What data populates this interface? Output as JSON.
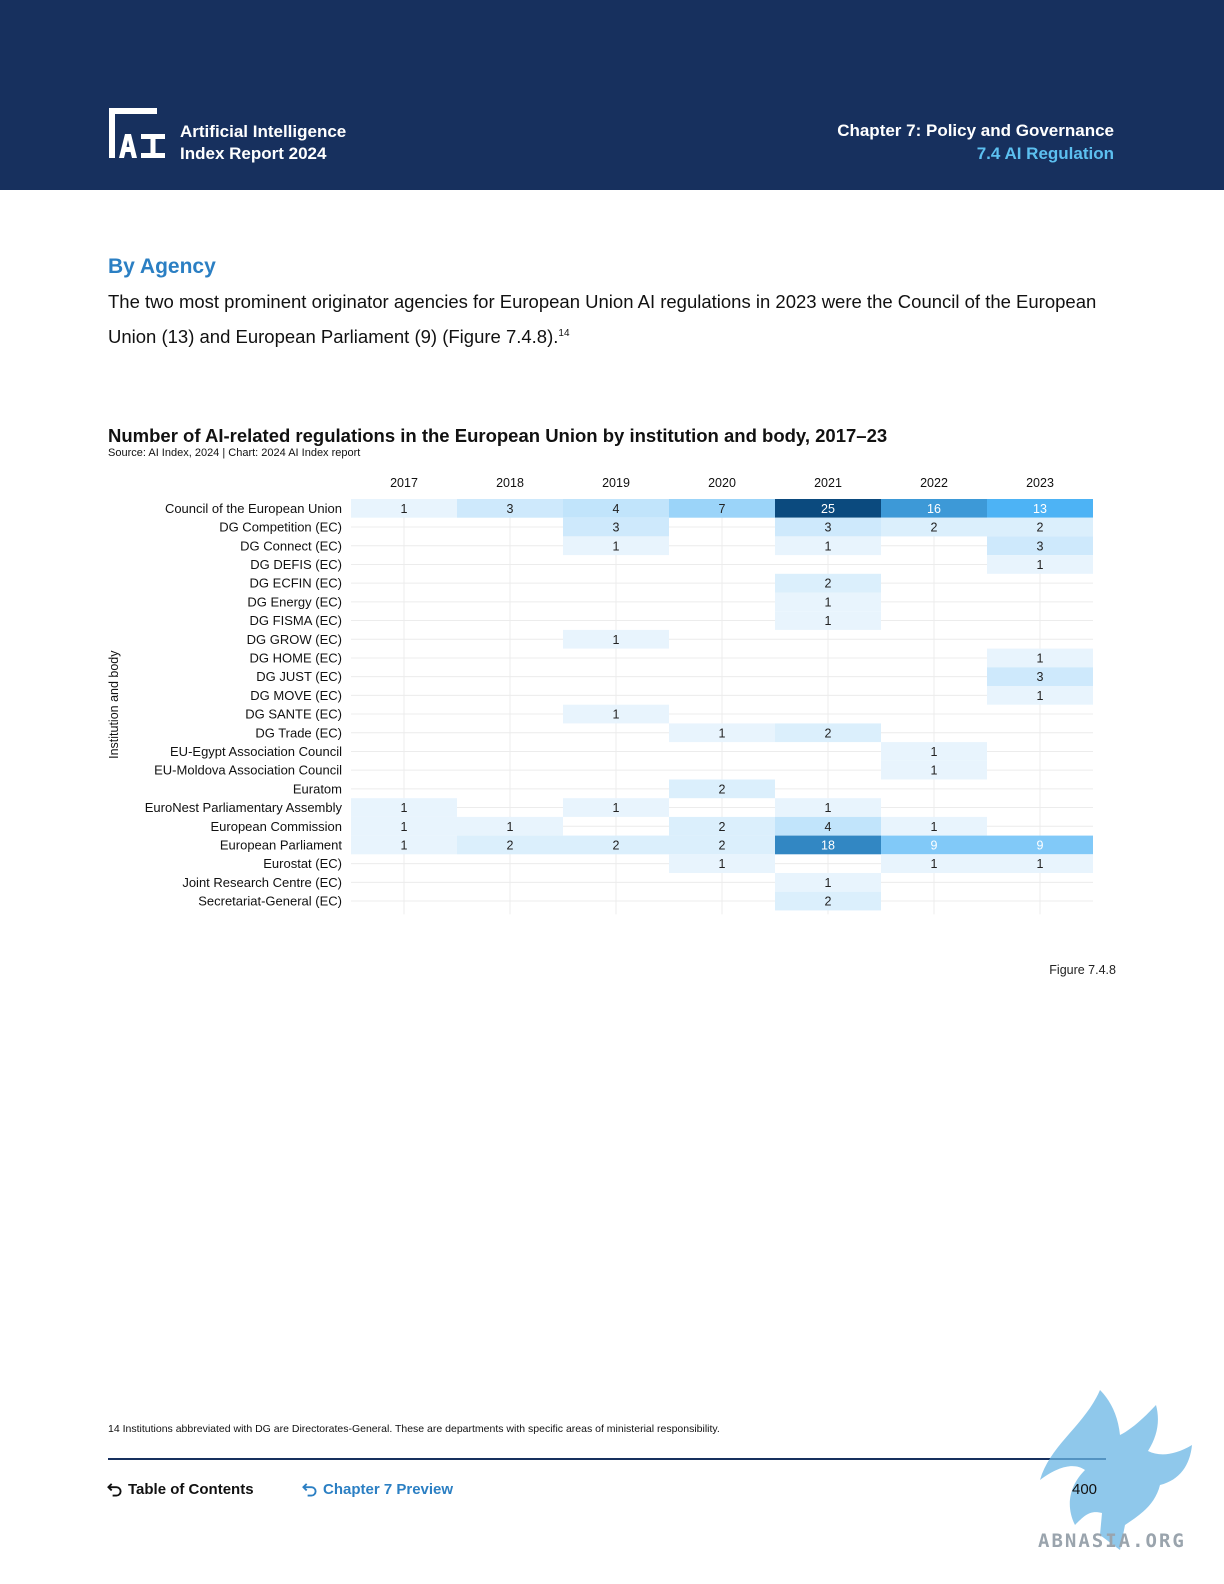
{
  "header": {
    "report_title_line1": "Artificial Intelligence",
    "report_title_line2": "Index Report 2024",
    "chapter": "Chapter 7: Policy and Governance",
    "section": "7.4 AI Regulation",
    "logo_icon": "ai-index-logo",
    "background_color": "#17305e",
    "accent_color": "#5cc0f0"
  },
  "content": {
    "heading": "By Agency",
    "paragraph": "The two most prominent originator agencies for European Union AI regulations in 2023 were the Council of the European Union (13) and European Parliament (9) (Figure 7.4.8).",
    "footnote_ref": "14"
  },
  "chart": {
    "title": "Number of AI-related regulations in the European Union by institution and body, 2017–23",
    "source": "Source: AI Index, 2024 | Chart: 2024 AI Index report",
    "figure_label": "Figure 7.4.8"
  },
  "chart_data": {
    "type": "heatmap",
    "title": "Number of AI-related regulations in the European Union by institution and body, 2017–23",
    "ylabel": "Institution and body",
    "columns": [
      "2017",
      "2018",
      "2019",
      "2020",
      "2021",
      "2022",
      "2023"
    ],
    "rows": [
      "Council of the European Union",
      "DG Competition (EC)",
      "DG Connect (EC)",
      "DG DEFIS (EC)",
      "DG ECFIN (EC)",
      "DG Energy (EC)",
      "DG FISMA (EC)",
      "DG GROW (EC)",
      "DG HOME (EC)",
      "DG JUST (EC)",
      "DG MOVE (EC)",
      "DG SANTE (EC)",
      "DG Trade (EC)",
      "EU-Egypt Association Council",
      "EU-Moldova Association Council",
      "Euratom",
      "EuroNest Parliamentary Assembly",
      "European Commission",
      "European Parliament",
      "Eurostat (EC)",
      "Joint Research Centre (EC)",
      "Secretariat-General (EC)"
    ],
    "values": [
      [
        1,
        3,
        4,
        7,
        25,
        16,
        13
      ],
      [
        null,
        null,
        3,
        null,
        3,
        2,
        2
      ],
      [
        null,
        null,
        1,
        null,
        1,
        null,
        3
      ],
      [
        null,
        null,
        null,
        null,
        null,
        null,
        1
      ],
      [
        null,
        null,
        null,
        null,
        2,
        null,
        null
      ],
      [
        null,
        null,
        null,
        null,
        1,
        null,
        null
      ],
      [
        null,
        null,
        null,
        null,
        1,
        null,
        null
      ],
      [
        null,
        null,
        1,
        null,
        null,
        null,
        null
      ],
      [
        null,
        null,
        null,
        null,
        null,
        null,
        1
      ],
      [
        null,
        null,
        null,
        null,
        null,
        null,
        3
      ],
      [
        null,
        null,
        null,
        null,
        null,
        null,
        1
      ],
      [
        null,
        null,
        1,
        null,
        null,
        null,
        null
      ],
      [
        null,
        null,
        null,
        1,
        2,
        null,
        null
      ],
      [
        null,
        null,
        null,
        null,
        null,
        1,
        null
      ],
      [
        null,
        null,
        null,
        null,
        null,
        1,
        null
      ],
      [
        null,
        null,
        null,
        2,
        null,
        null,
        null
      ],
      [
        1,
        null,
        1,
        null,
        1,
        null,
        null
      ],
      [
        1,
        1,
        null,
        2,
        4,
        1,
        null
      ],
      [
        1,
        2,
        2,
        2,
        18,
        9,
        9
      ],
      [
        null,
        null,
        null,
        1,
        null,
        1,
        1
      ],
      [
        null,
        null,
        null,
        null,
        1,
        null,
        null
      ],
      [
        null,
        null,
        null,
        null,
        2,
        null,
        null
      ]
    ],
    "color_scale": {
      "low": "#e8f4fd",
      "mid": "#4db3f5",
      "high": "#0b4a7e"
    },
    "max_value": 25,
    "grid": true
  },
  "footer": {
    "footnote_number": "14",
    "footnote_text": "Institutions abbreviated with DG are Directorates-General. These are departments with specific areas of ministerial responsibility.",
    "toc_label": "Table of Contents",
    "chapter_preview_label": "Chapter 7 Preview",
    "page_number": "400",
    "watermark_text": "ABNASIA.ORG",
    "nav_icon": "return-arrow-icon"
  }
}
